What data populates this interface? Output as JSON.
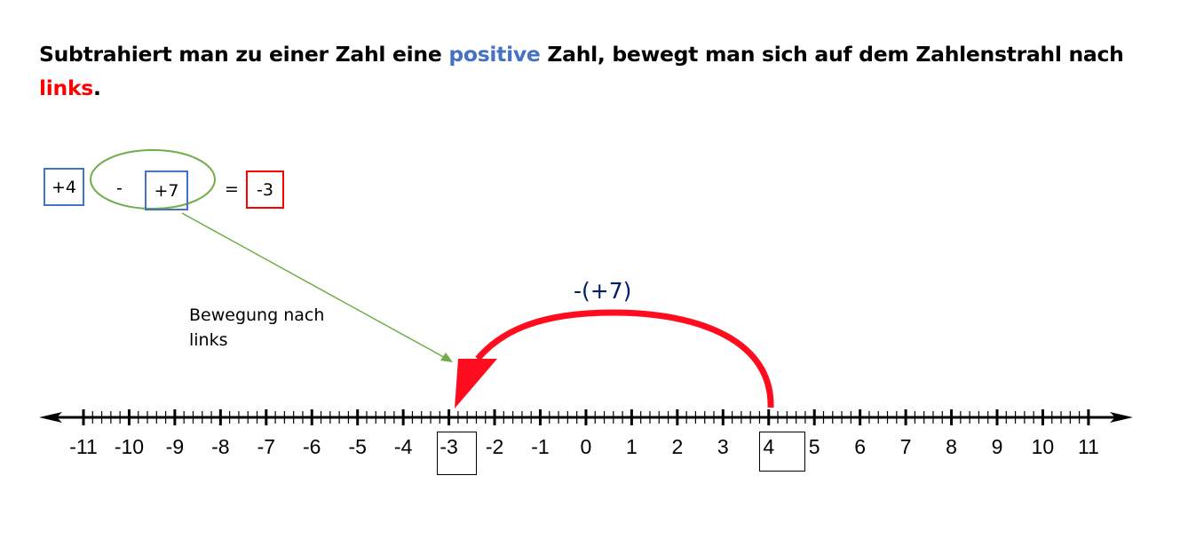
{
  "heading": {
    "part1": "Subtrahiert man zu einer Zahl eine ",
    "highlight1": "positive",
    "part2": " Zahl, bewegt man sich auf dem Zahlenstrahl nach ",
    "highlight2": "links",
    "part3": ".",
    "highlight1_color": "#4472c4",
    "highlight2_color": "#ff0000"
  },
  "equation": {
    "first": "+4",
    "operator": "-",
    "second": "+7",
    "equals": "=",
    "result": "-3"
  },
  "annotation": "Bewegung nach links",
  "jump_label": "-(+7)",
  "number_line": {
    "min": -11,
    "max": 11,
    "subdivisions": 5,
    "start": 4,
    "end": -3,
    "labels": [
      "-11",
      "-10",
      "-9",
      "-8",
      "-7",
      "-6",
      "-5",
      "-4",
      "-3",
      "-2",
      "-1",
      "0",
      "1",
      "2",
      "3",
      "4",
      "5",
      "6",
      "7",
      "8",
      "9",
      "10",
      "11"
    ]
  },
  "colors": {
    "blue": "#4472c4",
    "red": "#ff0000",
    "green": "#70ad47",
    "navy": "#002060"
  }
}
